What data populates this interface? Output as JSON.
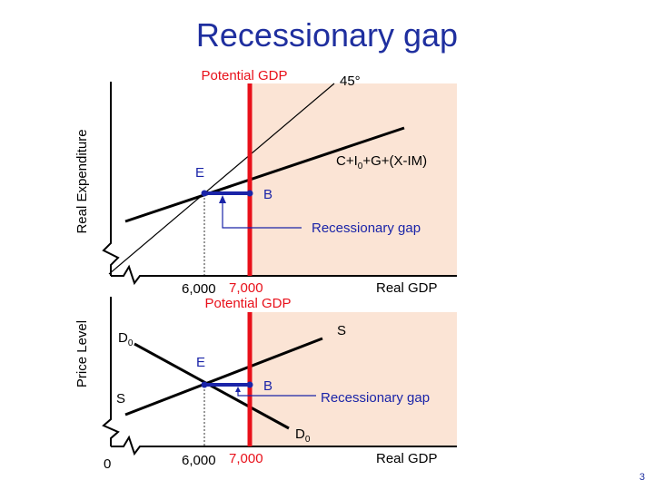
{
  "slide": {
    "title": "Recessionary gap",
    "number": "3"
  },
  "colors": {
    "title": "#1f2f9f",
    "potential_gdp_line": "#e8101a",
    "gap_region": "#fbe4d5",
    "gap_bar": "#1a24a8",
    "curves": "#000000"
  },
  "top_panel": {
    "y_axis_label": "Real Expenditure",
    "x_axis_label": "Real GDP",
    "potential_gdp_label": "Potential GDP",
    "line_45_label": "45°",
    "expenditure_curve_label": {
      "main": "C+I",
      "sub": "0",
      "rest": "+G+(X-IM)"
    },
    "point_e": "E",
    "point_b": "B",
    "gap_label": "Recessionary gap",
    "tick_equilibrium": "6,000",
    "tick_potential": "7,000"
  },
  "bottom_panel": {
    "y_axis_label": "Price Level",
    "x_axis_label": "Real GDP",
    "potential_gdp_label": "Potential GDP",
    "demand_label": {
      "main": "D",
      "sub": "0"
    },
    "demand_label_end": {
      "main": "D",
      "sub": "0"
    },
    "supply_label_top": "S",
    "supply_label_left": "S",
    "point_e": "E",
    "point_b": "B",
    "gap_label": "Recessionary gap",
    "tick_equilibrium": "6,000",
    "tick_potential": "7,000",
    "origin": "0"
  }
}
